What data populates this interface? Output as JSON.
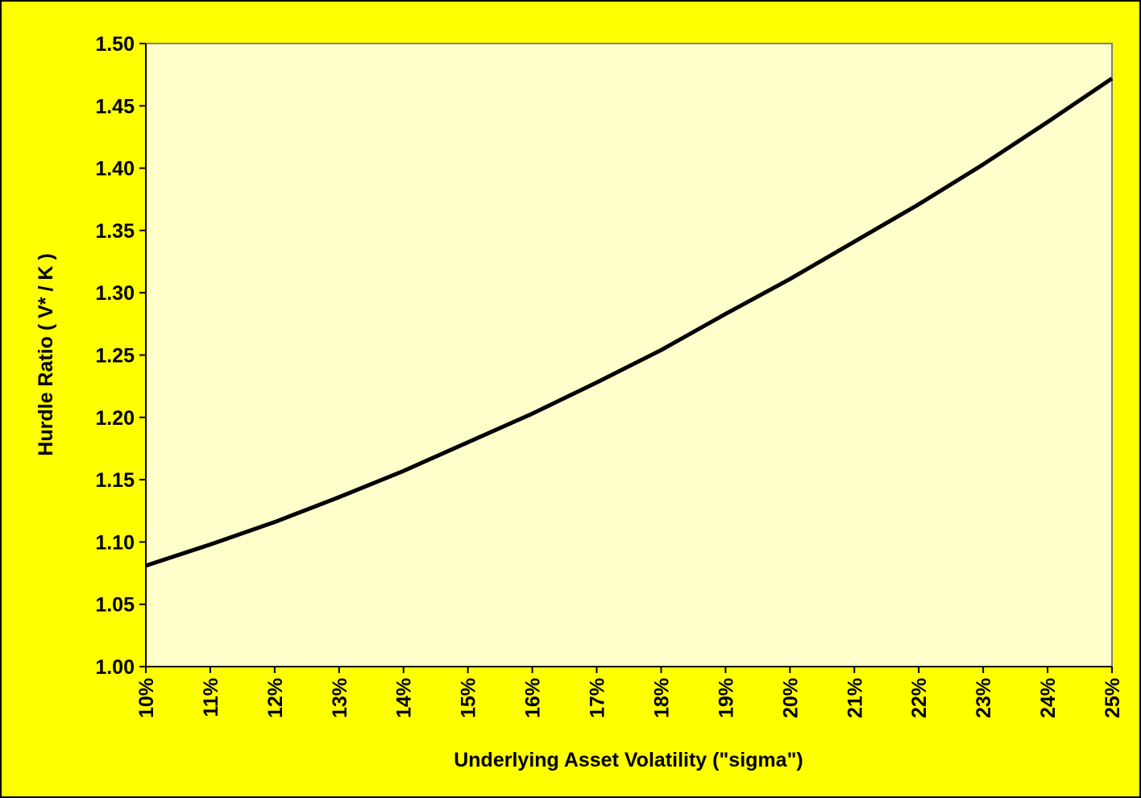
{
  "chart_data": {
    "type": "line",
    "categories": [
      "10%",
      "11%",
      "12%",
      "13%",
      "14%",
      "15%",
      "16%",
      "17%",
      "18%",
      "19%",
      "20%",
      "21%",
      "22%",
      "23%",
      "24%",
      "25%"
    ],
    "series": [
      {
        "name": "Hurdle Ratio",
        "color": "#000000",
        "values": [
          1.081,
          1.098,
          1.116,
          1.136,
          1.157,
          1.18,
          1.203,
          1.228,
          1.254,
          1.283,
          1.311,
          1.341,
          1.371,
          1.403,
          1.437,
          1.472
        ]
      }
    ],
    "ylim": [
      1.0,
      1.5
    ],
    "yticks": [
      {
        "value": 1.0,
        "label": "1.00"
      },
      1.05,
      {
        "value": 1.1,
        "label": "1.10"
      },
      1.15,
      {
        "value": 1.2,
        "label": "1.20"
      },
      1.25,
      {
        "value": 1.3,
        "label": "1.30"
      },
      1.35,
      {
        "value": 1.4,
        "label": "1.40"
      },
      1.45,
      {
        "value": 1.5,
        "label": "1.50"
      }
    ],
    "xlabel": "Underlying Asset Volatility (\"sigma\")",
    "ylabel": "Hurdle Ratio ( V* / K )",
    "grid": false,
    "background_color": "#ffff00",
    "plot_background_color": "#ffffcc"
  }
}
